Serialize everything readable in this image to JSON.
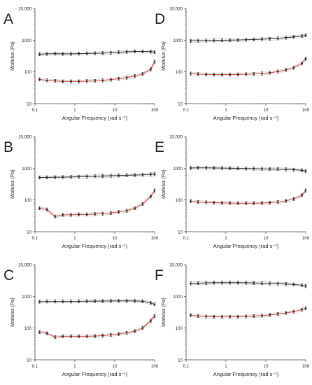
{
  "chart_data": [
    {
      "panel": "A",
      "type": "line",
      "xlabel": "Angular Frequency (rad s⁻¹)",
      "ylabel": "Modulus (Pa)",
      "xscale": "log",
      "yscale": "log",
      "xlim": [
        0.1,
        100
      ],
      "ylim": [
        10,
        10000
      ],
      "x_ticks": [
        "0.1",
        "1",
        "10",
        "100"
      ],
      "y_ticks": [
        "10",
        "100",
        "1000",
        "10,000"
      ],
      "x": [
        0.13,
        0.2,
        0.32,
        0.5,
        0.8,
        1.26,
        2,
        3.2,
        5,
        8,
        12.6,
        20,
        32,
        50,
        80,
        100
      ],
      "series": [
        {
          "values": [
            360,
            370,
            375,
            370,
            370,
            375,
            380,
            385,
            390,
            400,
            415,
            430,
            440,
            440,
            435,
            420
          ],
          "color": "#333333"
        },
        {
          "values": [
            58,
            54,
            52,
            50,
            50,
            50,
            51,
            52,
            54,
            57,
            61,
            66,
            74,
            86,
            120,
            210
          ],
          "color": "#d9463b"
        }
      ]
    },
    {
      "panel": "D",
      "type": "line",
      "xlabel": "Angular Frequency (rad s⁻¹)",
      "ylabel": "Modulus (Pa)",
      "xscale": "log",
      "yscale": "log",
      "xlim": [
        0.1,
        100
      ],
      "ylim": [
        10,
        10000
      ],
      "x_ticks": [
        "0.1",
        "1",
        "10",
        "100"
      ],
      "y_ticks": [
        "10",
        "100",
        "1000",
        "10,000"
      ],
      "x": [
        0.13,
        0.2,
        0.32,
        0.5,
        0.8,
        1.26,
        2,
        3.2,
        5,
        8,
        12.6,
        20,
        32,
        50,
        80,
        100
      ],
      "series": [
        {
          "values": [
            950,
            960,
            970,
            980,
            990,
            1000,
            1010,
            1030,
            1050,
            1070,
            1100,
            1140,
            1200,
            1260,
            1350,
            1420
          ],
          "color": "#333333"
        },
        {
          "values": [
            88,
            85,
            83,
            82,
            82,
            82,
            83,
            84,
            86,
            89,
            94,
            102,
            115,
            135,
            185,
            260
          ],
          "color": "#d9463b"
        }
      ]
    },
    {
      "panel": "B",
      "type": "line",
      "xlabel": "Angular Frequency (rad s⁻¹)",
      "ylabel": "Modulus (Pa)",
      "xscale": "log",
      "yscale": "log",
      "xlim": [
        0.1,
        100
      ],
      "ylim": [
        10,
        10000
      ],
      "x_ticks": [
        "0.1",
        "1",
        "10",
        "100"
      ],
      "y_ticks": [
        "10",
        "100",
        "1000",
        "10,000"
      ],
      "x": [
        0.13,
        0.2,
        0.32,
        0.5,
        0.8,
        1.26,
        2,
        3.2,
        5,
        8,
        12.6,
        20,
        32,
        50,
        80,
        100
      ],
      "series": [
        {
          "values": [
            510,
            515,
            520,
            525,
            530,
            540,
            550,
            560,
            570,
            580,
            590,
            600,
            610,
            620,
            640,
            650
          ],
          "color": "#333333"
        },
        {
          "values": [
            55,
            50,
            30,
            34,
            34,
            35,
            35,
            36,
            37,
            39,
            42,
            46,
            55,
            75,
            130,
            200
          ],
          "color": "#d9463b"
        }
      ]
    },
    {
      "panel": "E",
      "type": "line",
      "xlabel": "Angular Frequency (rad s⁻¹)",
      "ylabel": "Modulus (Pa)",
      "xscale": "log",
      "yscale": "log",
      "xlim": [
        0.1,
        100
      ],
      "ylim": [
        10,
        10000
      ],
      "x_ticks": [
        "0.1",
        "1",
        "10",
        "100"
      ],
      "y_ticks": [
        "10",
        "100",
        "1000",
        "10,000"
      ],
      "x": [
        0.13,
        0.2,
        0.32,
        0.5,
        0.8,
        1.26,
        2,
        3.2,
        5,
        8,
        12.6,
        20,
        32,
        50,
        80,
        100
      ],
      "series": [
        {
          "values": [
            1020,
            1030,
            1030,
            1020,
            1010,
            1000,
            990,
            980,
            970,
            960,
            950,
            940,
            920,
            900,
            860,
            820
          ],
          "color": "#333333"
        },
        {
          "values": [
            92,
            86,
            84,
            82,
            81,
            80,
            79,
            79,
            79,
            80,
            82,
            86,
            94,
            108,
            140,
            200
          ],
          "color": "#d9463b"
        }
      ]
    },
    {
      "panel": "C",
      "type": "line",
      "xlabel": "Angular Frequency (rad s⁻¹)",
      "ylabel": "Modulus (Pa)",
      "xscale": "log",
      "yscale": "log",
      "xlim": [
        0.1,
        100
      ],
      "ylim": [
        10,
        10000
      ],
      "x_ticks": [
        "0.1",
        "1",
        "10",
        "100"
      ],
      "y_ticks": [
        "10",
        "100",
        "1000",
        "10,000"
      ],
      "x": [
        0.13,
        0.2,
        0.32,
        0.5,
        0.8,
        1.26,
        2,
        3.2,
        5,
        8,
        12.6,
        20,
        32,
        50,
        80,
        100
      ],
      "series": [
        {
          "values": [
            680,
            690,
            690,
            690,
            690,
            695,
            700,
            705,
            710,
            715,
            720,
            720,
            715,
            700,
            620,
            560
          ],
          "color": "#333333"
        },
        {
          "values": [
            75,
            68,
            52,
            55,
            55,
            55,
            55,
            56,
            58,
            61,
            65,
            71,
            80,
            100,
            170,
            240
          ],
          "color": "#d9463b"
        }
      ]
    },
    {
      "panel": "F",
      "type": "line",
      "xlabel": "Angular Frequency (rad s⁻¹)",
      "ylabel": "Modulus (Pa)",
      "xscale": "log",
      "yscale": "log",
      "xlim": [
        0.1,
        100
      ],
      "ylim": [
        10,
        10000
      ],
      "x_ticks": [
        "0.1",
        "1",
        "10",
        "100"
      ],
      "y_ticks": [
        "10",
        "100",
        "1000",
        "10,000"
      ],
      "x": [
        0.13,
        0.2,
        0.32,
        0.5,
        0.8,
        1.26,
        2,
        3.2,
        5,
        8,
        12.6,
        20,
        32,
        50,
        80,
        100
      ],
      "series": [
        {
          "values": [
            2550,
            2600,
            2650,
            2700,
            2700,
            2700,
            2700,
            2680,
            2650,
            2600,
            2550,
            2500,
            2450,
            2380,
            2250,
            2100
          ],
          "color": "#333333"
        },
        {
          "values": [
            255,
            240,
            232,
            228,
            226,
            226,
            228,
            232,
            238,
            248,
            260,
            278,
            300,
            330,
            380,
            420
          ],
          "color": "#d9463b"
        }
      ]
    }
  ]
}
